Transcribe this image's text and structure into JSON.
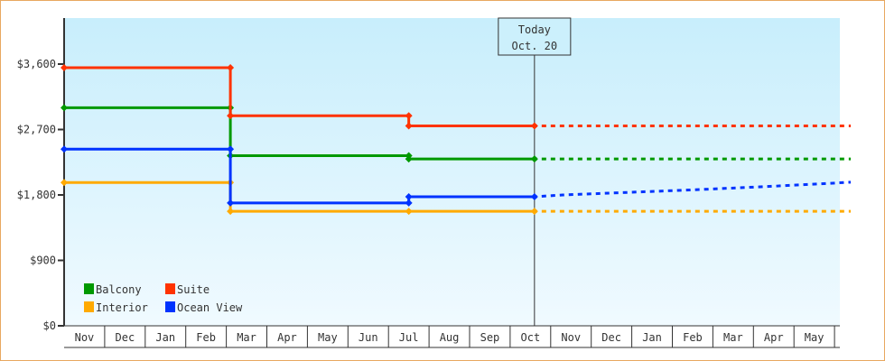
{
  "chart_data": {
    "type": "line",
    "title": "",
    "xlabel": "",
    "ylabel": "",
    "ylim": [
      0,
      4300
    ],
    "y_ticks": [
      0,
      900,
      1800,
      2700,
      3600
    ],
    "y_tick_labels": [
      "$0",
      "$900",
      "$1,800",
      "$2,700",
      "$3,600"
    ],
    "x_tick_labels": [
      "Nov",
      "Dec",
      "Jan",
      "Feb",
      "Mar",
      "Apr",
      "May",
      "Jun",
      "Jul",
      "Aug",
      "Sep",
      "Oct",
      "Nov",
      "Dec",
      "Jan",
      "Feb",
      "Mar",
      "Apr",
      "May"
    ],
    "x_unit": "month index (0 = start of first Nov)",
    "xlim": [
      0,
      19.4
    ],
    "grid": false,
    "legend_position": "bottom-left",
    "today": {
      "label_line1": "Today",
      "label_line2": "Oct. 20",
      "x": 11.6
    },
    "series": [
      {
        "name": "Balcony",
        "color": "#009900",
        "points": [
          [
            0,
            3000
          ],
          [
            4.1,
            3000
          ],
          [
            4.1,
            2340
          ],
          [
            8.5,
            2340
          ],
          [
            8.5,
            2295
          ],
          [
            11.6,
            2295
          ]
        ],
        "projection": [
          [
            11.6,
            2295
          ],
          [
            19.4,
            2295
          ]
        ]
      },
      {
        "name": "Suite",
        "color": "#ff3300",
        "points": [
          [
            0,
            3550
          ],
          [
            4.1,
            3550
          ],
          [
            4.1,
            2890
          ],
          [
            8.5,
            2890
          ],
          [
            8.5,
            2750
          ],
          [
            11.6,
            2750
          ]
        ],
        "projection": [
          [
            11.6,
            2750
          ],
          [
            19.4,
            2750
          ]
        ]
      },
      {
        "name": "Interior",
        "color": "#ffaa00",
        "points": [
          [
            0,
            1970
          ],
          [
            4.1,
            1970
          ],
          [
            4.1,
            1575
          ],
          [
            8.5,
            1575
          ],
          [
            11.6,
            1575
          ]
        ],
        "projection": [
          [
            11.6,
            1575
          ],
          [
            19.4,
            1575
          ]
        ]
      },
      {
        "name": "Ocean View",
        "color": "#0033ff",
        "points": [
          [
            0,
            2430
          ],
          [
            4.1,
            2430
          ],
          [
            4.1,
            1690
          ],
          [
            8.5,
            1690
          ],
          [
            8.5,
            1775
          ],
          [
            11.6,
            1775
          ]
        ],
        "projection": [
          [
            11.6,
            1775
          ],
          [
            12.3,
            1800
          ],
          [
            15.5,
            1870
          ],
          [
            17.5,
            1920
          ],
          [
            19.4,
            1975
          ]
        ]
      }
    ]
  }
}
